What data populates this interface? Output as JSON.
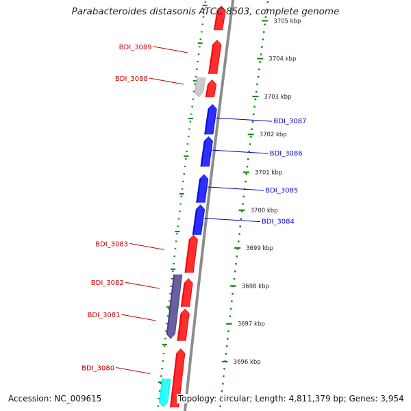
{
  "title": "Parabacteroides distasonis ATCC 8503, complete genome",
  "footer": {
    "accession": "Accession: NC_009615",
    "topology": "Topology: circular; Length: 4,811,379 bp; Genes: 3,954"
  },
  "ruler_labels": [
    {
      "kbp": 3705,
      "text": "3705 kbp"
    },
    {
      "kbp": 3704,
      "text": "3704 kbp"
    },
    {
      "kbp": 3703,
      "text": "3703 kbp"
    },
    {
      "kbp": 3702,
      "text": "3702 kbp"
    },
    {
      "kbp": 3701,
      "text": "3701 kbp"
    },
    {
      "kbp": 3700,
      "text": "3700 kbp"
    },
    {
      "kbp": 3699,
      "text": "3699 kbp"
    },
    {
      "kbp": 3698,
      "text": "3698 kbp"
    },
    {
      "kbp": 3697,
      "text": "3697 kbp"
    },
    {
      "kbp": 3696,
      "text": "3696 kbp"
    }
  ],
  "genes": [
    {
      "label": "BDI_3089",
      "strand": "forward",
      "color": "#ff0000",
      "start_kbp": 3704.5,
      "end_kbp": 3703.6,
      "labeled": true
    },
    {
      "label": "",
      "strand": "forward",
      "color": "#ff0000",
      "start_kbp": 3705.4,
      "end_kbp": 3704.75,
      "labeled": false
    },
    {
      "label": "BDI_3088",
      "strand": "forward",
      "color": "#ff0000",
      "start_kbp": 3703.45,
      "end_kbp": 3702.98,
      "labeled": true
    },
    {
      "label": "",
      "strand": "reverse",
      "color": "#c0c0c0",
      "start_kbp": 3703.5,
      "end_kbp": 3702.98,
      "labeled": false
    },
    {
      "label": "BDI_3087",
      "strand": "forward",
      "color": "#0000ff",
      "start_kbp": 3702.8,
      "end_kbp": 3702.0,
      "labeled": true
    },
    {
      "label": "BDI_3086",
      "strand": "forward",
      "color": "#0000ff",
      "start_kbp": 3701.95,
      "end_kbp": 3701.15,
      "labeled": true
    },
    {
      "label": "BDI_3085",
      "strand": "forward",
      "color": "#0000ff",
      "start_kbp": 3700.95,
      "end_kbp": 3700.2,
      "labeled": true
    },
    {
      "label": "BDI_3084",
      "strand": "forward",
      "color": "#0000ff",
      "start_kbp": 3700.15,
      "end_kbp": 3699.35,
      "labeled": true
    },
    {
      "label": "BDI_3083",
      "strand": "forward",
      "color": "#ff0000",
      "start_kbp": 3699.35,
      "end_kbp": 3698.35,
      "labeled": true
    },
    {
      "label": "BDI_3082",
      "strand": "forward",
      "color": "#ff0000",
      "start_kbp": 3698.2,
      "end_kbp": 3697.45,
      "labeled": true
    },
    {
      "label": "",
      "strand": "reverse",
      "color": "#483d8b",
      "start_kbp": 3698.3,
      "end_kbp": 3696.6,
      "labeled": false
    },
    {
      "label": "BDI_3081",
      "strand": "forward",
      "color": "#ff0000",
      "start_kbp": 3697.4,
      "end_kbp": 3696.55,
      "labeled": true
    },
    {
      "label": "BDI_3080",
      "strand": "forward",
      "color": "#ff0000",
      "start_kbp": 3696.35,
      "end_kbp": 3694.8,
      "labeled": true
    },
    {
      "label": "",
      "strand": "reverse",
      "color": "#00ffff",
      "start_kbp": 3695.55,
      "end_kbp": 3694.8,
      "labeled": false
    }
  ],
  "colors": {
    "backbone": "#8c8c8c",
    "ruler": "#1a8a1a",
    "forward_label": "#cc0000",
    "reverse_label": "#0000cc",
    "ruler_text": "#222222"
  }
}
